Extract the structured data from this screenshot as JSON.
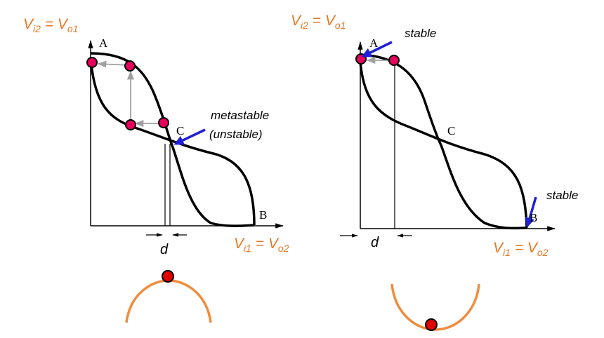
{
  "left_panel": {
    "y_axis_label": {
      "main": "V",
      "sub1": "i2",
      "mid": " = V",
      "sub2": "o1"
    },
    "x_axis_label": {
      "main": "V",
      "sub1": "i1",
      "mid": " = V",
      "sub2": "o2"
    },
    "point_a": "A",
    "point_b": "B",
    "point_c": "C",
    "annotation_line1": "metastable",
    "annotation_line2": "(unstable)",
    "spacing_label": "d"
  },
  "right_panel": {
    "y_axis_label": {
      "main": "V",
      "sub1": "i2",
      "mid": " = V",
      "sub2": "o1"
    },
    "x_axis_label": {
      "main": "V",
      "sub1": "i1",
      "mid": " = V",
      "sub2": "o2"
    },
    "point_a": "A",
    "point_b": "B",
    "point_c": "C",
    "annotation_top": "stable",
    "annotation_bottom": "stable",
    "spacing_label": "d"
  },
  "colors": {
    "label_orange": "#E87722",
    "curve": "#000000",
    "marker_fill": "#E6005C",
    "arrow_blue": "#1F1FD6",
    "step_arrow": "#A0A0A0",
    "ball_fill": "#E00000",
    "surface_orange": "#F08C3C"
  }
}
